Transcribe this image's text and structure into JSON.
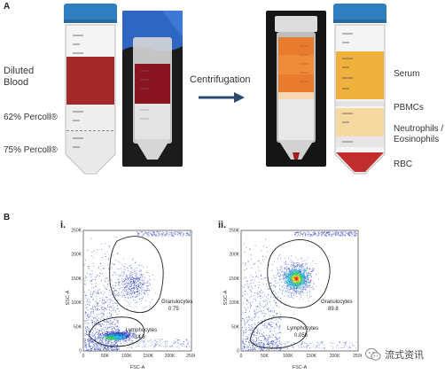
{
  "panel_a": {
    "letter": "A",
    "labels": {
      "diluted_blood": "Diluted\nBlood",
      "percoll62": "62% Percoll®",
      "percoll75": "75% Percoll®",
      "centrifugation": "Centrifugation",
      "serum": "Serum",
      "pbmcs": "PBMCs",
      "neutrophils": "Neutrophils /\nEosinophils",
      "rbc": "RBC"
    },
    "colors": {
      "cap": "#2f7fc0",
      "blood": "#a3282a",
      "serum": "#f0b13c",
      "neutro": "#f5d9a0",
      "rbc": "#c22d2d",
      "arrow": "#2b4a6e"
    }
  },
  "panel_b": {
    "letter": "B",
    "plots": [
      {
        "id": "i",
        "label": "i.",
        "xlabel": "FSC-A",
        "ylabel": "SSC-A",
        "xticks": [
          "0",
          "50K",
          "100K",
          "150K",
          "200K",
          "250K"
        ],
        "yticks": [
          "0",
          "50K",
          "100K",
          "150K",
          "200K",
          "250K"
        ],
        "gates": [
          {
            "name": "Granulocytes",
            "value": "0.75"
          },
          {
            "name": "Lymphocytes",
            "value": "14.8"
          }
        ]
      },
      {
        "id": "ii",
        "label": "ii.",
        "xlabel": "FSC-A",
        "ylabel": "SSC-A",
        "xticks": [
          "0",
          "50K",
          "100K",
          "150K",
          "200K",
          "250K"
        ],
        "yticks": [
          "0",
          "50K",
          "100K",
          "150K",
          "200K",
          "250K"
        ],
        "gates": [
          {
            "name": "Granulocytes",
            "value": "89.8"
          },
          {
            "name": "Lymphocytes",
            "value": "0.056"
          }
        ]
      }
    ]
  },
  "watermark": {
    "text": "流式资讯",
    "icon": "wechat-icon"
  }
}
